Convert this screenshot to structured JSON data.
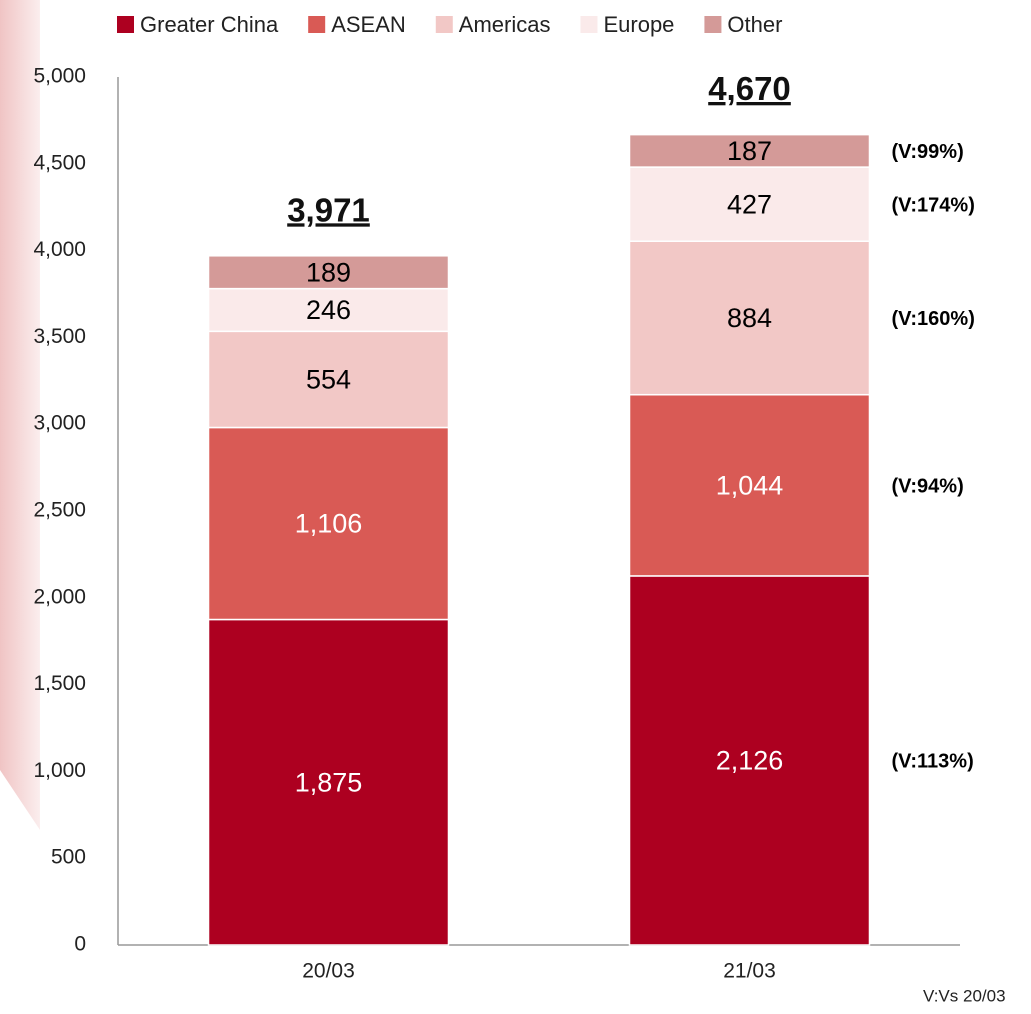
{
  "chart_data": {
    "type": "stacked_bar",
    "categories": [
      "20/03",
      "21/03"
    ],
    "series": [
      {
        "name": "Greater China",
        "color": "#ad0020",
        "label_color": "#ffffff",
        "values": [
          1875,
          2126
        ],
        "value_labels": [
          "1,875",
          "2,126"
        ],
        "annotation": "(V:113%)"
      },
      {
        "name": "ASEAN",
        "color": "#d95a55",
        "label_color": "#ffffff",
        "values": [
          1106,
          1044
        ],
        "value_labels": [
          "1,106",
          "1,044"
        ],
        "annotation": "(V:94%)"
      },
      {
        "name": "Americas",
        "color": "#f2c8c6",
        "label_color": "#000000",
        "values": [
          554,
          884
        ],
        "annotation": "(V:160%)"
      },
      {
        "name": "Europe",
        "color": "#faeaea",
        "label_color": "#000000",
        "values": [
          246,
          427
        ],
        "annotation": "(V:174%)"
      },
      {
        "name": "Other",
        "color": "#d49a98",
        "label_color": "#000000",
        "values": [
          189,
          187
        ],
        "annotation": "(V:99%)"
      }
    ],
    "totals": {
      "values": [
        3971,
        4670
      ],
      "value_labels": [
        "3,971",
        "4,670"
      ]
    },
    "ylim": [
      0,
      5000
    ],
    "yticks": [
      0,
      500,
      {
        "value": 1000,
        "label": "1,000"
      },
      {
        "value": 1500,
        "label": "1,500"
      },
      {
        "value": 2000,
        "label": "2,000"
      },
      {
        "value": 2500,
        "label": "2,500"
      },
      {
        "value": 3000,
        "label": "3,000"
      },
      {
        "value": 3500,
        "label": "3,500"
      },
      {
        "value": 4000,
        "label": "4,000"
      },
      {
        "value": 4500,
        "label": "4,500"
      },
      {
        "value": 5000,
        "label": "5,000"
      }
    ],
    "footnote": "V:Vs 20/03",
    "legend": "top"
  }
}
